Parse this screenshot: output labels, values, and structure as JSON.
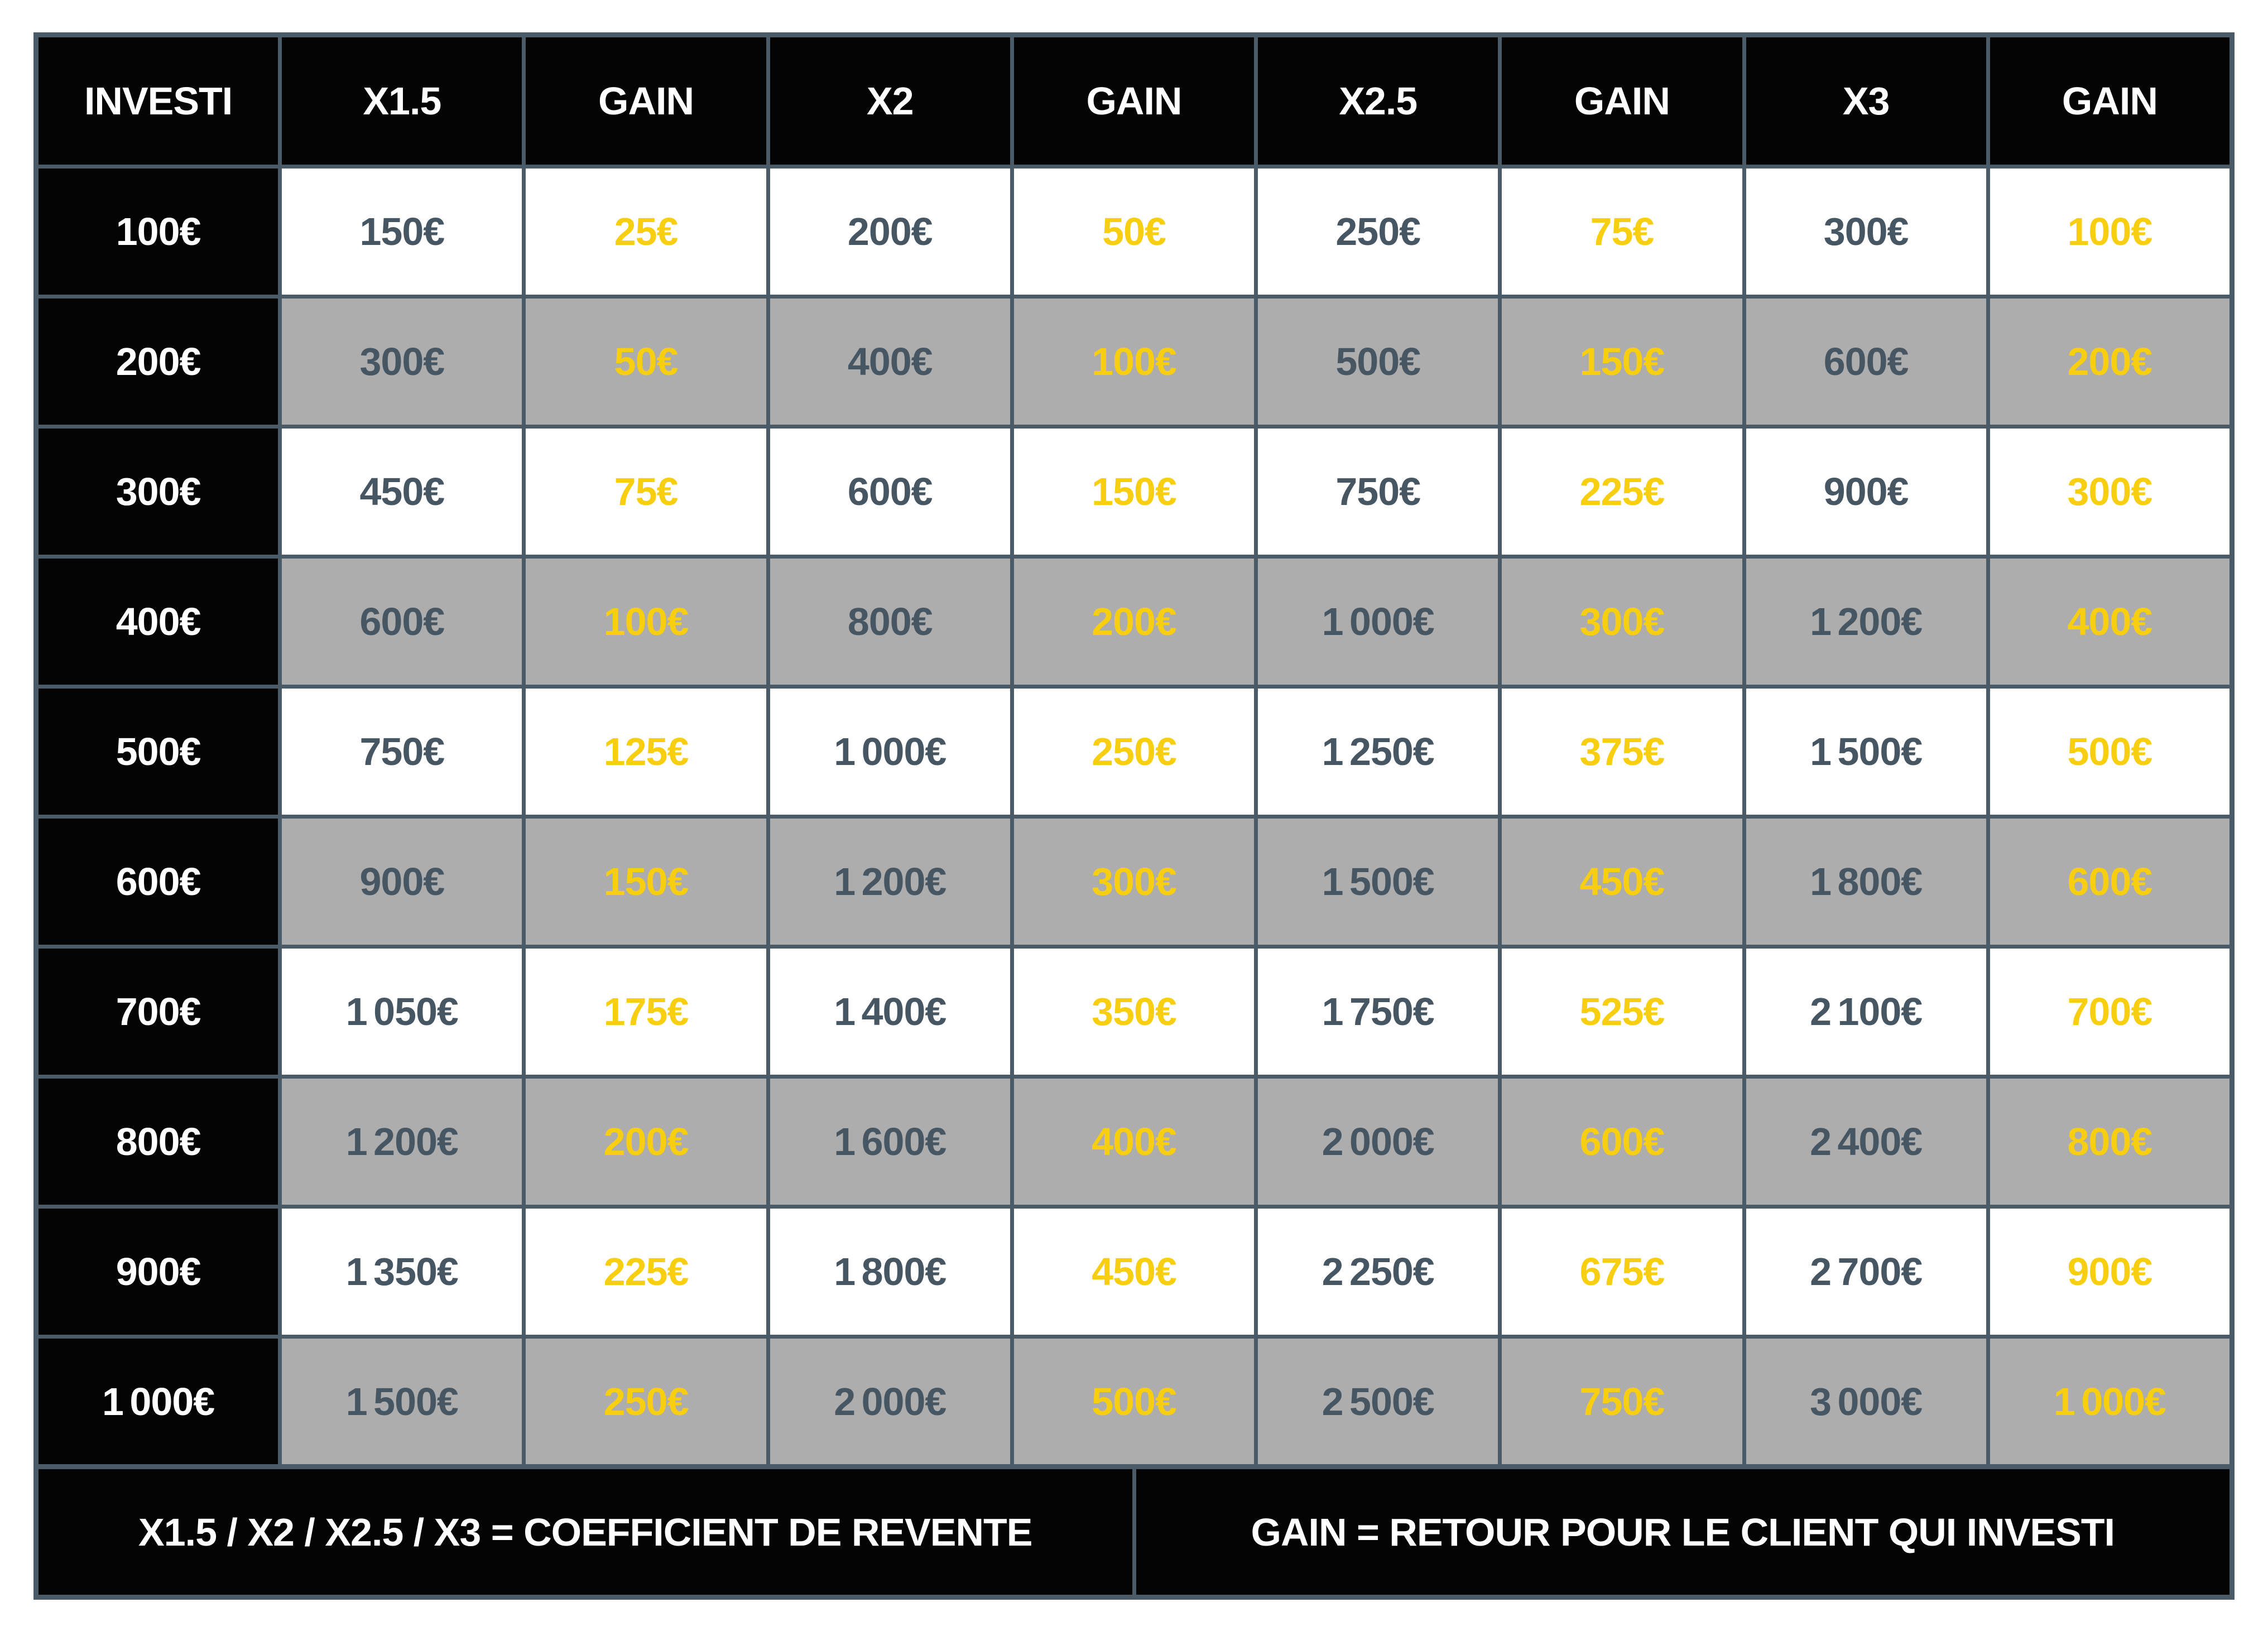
{
  "chart_data": {
    "type": "table",
    "columns": [
      "INVESTI",
      "X1.5",
      "GAIN",
      "X2",
      "GAIN",
      "X2.5",
      "GAIN",
      "X3",
      "GAIN"
    ],
    "rows": [
      [
        "100€",
        "150€",
        "25€",
        "200€",
        "50€",
        "250€",
        "75€",
        "300€",
        "100€"
      ],
      [
        "200€",
        "300€",
        "50€",
        "400€",
        "100€",
        "500€",
        "150€",
        "600€",
        "200€"
      ],
      [
        "300€",
        "450€",
        "75€",
        "600€",
        "150€",
        "750€",
        "225€",
        "900€",
        "300€"
      ],
      [
        "400€",
        "600€",
        "100€",
        "800€",
        "200€",
        "1 000€",
        "300€",
        "1 200€",
        "400€"
      ],
      [
        "500€",
        "750€",
        "125€",
        "1 000€",
        "250€",
        "1 250€",
        "375€",
        "1 500€",
        "500€"
      ],
      [
        "600€",
        "900€",
        "150€",
        "1 200€",
        "300€",
        "1 500€",
        "450€",
        "1 800€",
        "600€"
      ],
      [
        "700€",
        "1 050€",
        "175€",
        "1 400€",
        "350€",
        "1 750€",
        "525€",
        "2 100€",
        "700€"
      ],
      [
        "800€",
        "1 200€",
        "200€",
        "1 600€",
        "400€",
        "2 000€",
        "600€",
        "2 400€",
        "800€"
      ],
      [
        "900€",
        "1 350€",
        "225€",
        "1 800€",
        "450€",
        "2 250€",
        "675€",
        "2 700€",
        "900€"
      ],
      [
        "1 000€",
        "1 500€",
        "250€",
        "2 000€",
        "500€",
        "2 500€",
        "750€",
        "3 000€",
        "1 000€"
      ]
    ],
    "notes": {
      "coefficient": "X1.5 / X2 / X2.5 / X3 = COEFFICIENT DE REVENTE",
      "gain": "GAIN = RETOUR POUR LE CLIENT QUI INVESTI"
    },
    "layout_hints": {
      "header_position": "top",
      "row_striping": "white / gray alternating",
      "grid": true
    },
    "colors": {
      "header_bg": "#030303",
      "header_text": "#FFFFFF",
      "row_bg": "#FFFFFF",
      "row_alt_bg": "#ADADAD",
      "value_text": "#475663",
      "gain_text": "#F8CE11",
      "border": "#4A5A67"
    }
  }
}
